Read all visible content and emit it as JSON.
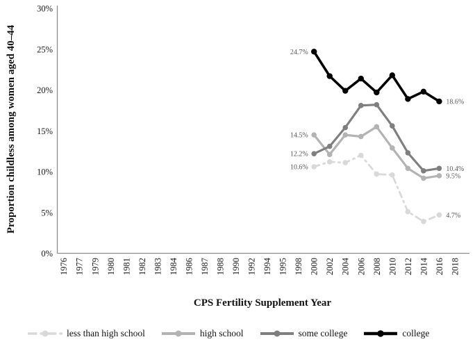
{
  "chart_data": {
    "type": "line",
    "title": "",
    "xlabel": "CPS Fertility Supplement Year",
    "ylabel": "Proportion childless among women aged 40–44",
    "x_categories": [
      "1976",
      "1977",
      "1979",
      "1980",
      "1981",
      "1982",
      "1983",
      "1984",
      "1986",
      "1987",
      "1988",
      "1990",
      "1992",
      "1994",
      "1995",
      "1998",
      "2000",
      "2002",
      "2004",
      "2006",
      "2008",
      "2010",
      "2012",
      "2014",
      "2016",
      "2018"
    ],
    "data_years": [
      "2000",
      "2002",
      "2004",
      "2006",
      "2008",
      "2010",
      "2012",
      "2014",
      "2016"
    ],
    "ylim": [
      0,
      30
    ],
    "ytick_step": 5,
    "ytick_labels": [
      "0%",
      "5%",
      "10%",
      "15%",
      "20%",
      "25%",
      "30%"
    ],
    "grid": false,
    "legend_position": "bottom",
    "axis_color": "#8c8c8c",
    "point_label_color": "#595959",
    "series": [
      {
        "name": "less than high school",
        "color": "#d9d9d9",
        "line_style": "dash-dot",
        "marker": "circle",
        "values": [
          10.6,
          11.2,
          11.1,
          12.0,
          9.7,
          9.6,
          5.1,
          3.9,
          4.7
        ],
        "first_label": "10.6%",
        "last_label": "4.7%"
      },
      {
        "name": "high school",
        "color": "#b3b3b3",
        "line_style": "solid",
        "marker": "circle",
        "values": [
          14.5,
          12.1,
          14.5,
          14.3,
          15.5,
          12.9,
          10.4,
          9.2,
          9.5
        ],
        "first_label": "14.5%",
        "last_label": "9.5%"
      },
      {
        "name": "some college",
        "color": "#7f7f7f",
        "line_style": "solid",
        "marker": "circle",
        "values": [
          12.2,
          13.1,
          15.4,
          18.1,
          18.2,
          15.6,
          12.3,
          10.1,
          10.4
        ],
        "first_label": "12.2%",
        "last_label": "10.4%"
      },
      {
        "name": "college",
        "color": "#000000",
        "line_style": "solid",
        "marker": "circle",
        "values": [
          24.7,
          21.7,
          19.9,
          21.4,
          19.7,
          21.8,
          18.9,
          19.8,
          18.6
        ],
        "first_label": "24.7%",
        "last_label": "18.6%"
      }
    ]
  }
}
